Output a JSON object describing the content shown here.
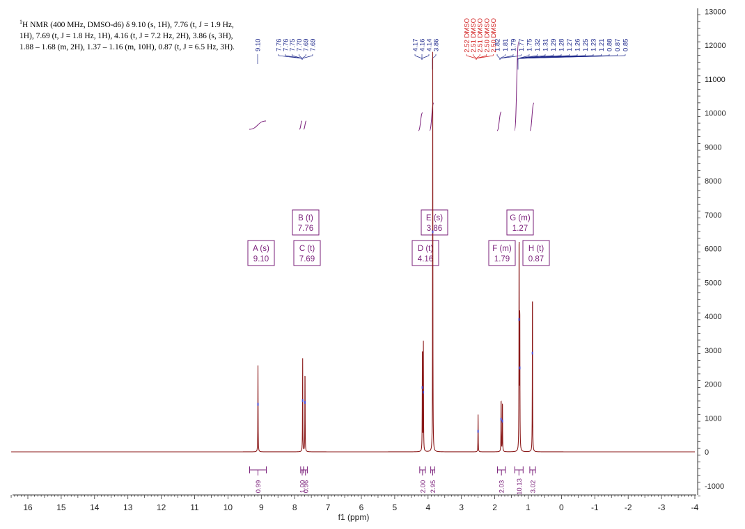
{
  "description": {
    "sup": "1",
    "lines": [
      "H NMR (400 MHz, DMSO-d6) δ 9.10 (s, 1H), 7.76 (t, J = 1.9 Hz,",
      "1H), 7.69 (t, J = 1.8 Hz, 1H), 4.16 (t, J = 7.2 Hz, 2H), 3.86 (s, 3H),",
      "1.88 – 1.68 (m, 2H), 1.37 – 1.16 (m, 10H), 0.87 (t, J = 6.5 Hz, 3H)."
    ]
  },
  "colors": {
    "spectrum": "#8b1a1a",
    "annotation": "#7a1f7a",
    "peak_label": "#1f2a8c",
    "solvent_label": "#d11a1a",
    "axis": "#333333"
  },
  "chart_data": {
    "type": "line",
    "xlabel": "f1 (ppm)",
    "xlim": [
      16.5,
      -4
    ],
    "ylim": [
      -1300,
      13000
    ],
    "x_ticks": [
      16,
      15,
      14,
      13,
      12,
      11,
      10,
      9,
      8,
      7,
      6,
      5,
      4,
      3,
      2,
      1,
      0,
      -1,
      -2,
      -3,
      -4
    ],
    "y_ticks": [
      -1000,
      0,
      1000,
      2000,
      3000,
      4000,
      5000,
      6000,
      7000,
      8000,
      9000,
      10000,
      11000,
      12000,
      13000
    ],
    "y_axis_side": "right",
    "peaks": [
      {
        "ppm": 9.1,
        "height": 2550
      },
      {
        "ppm": 7.76,
        "height": 2750
      },
      {
        "ppm": 7.69,
        "height": 2650
      },
      {
        "ppm": 4.17,
        "height": 3450
      },
      {
        "ppm": 4.14,
        "height": 3200
      },
      {
        "ppm": 3.86,
        "height": 11800
      },
      {
        "ppm": 2.5,
        "height": 1100
      },
      {
        "ppm": 1.81,
        "height": 1750
      },
      {
        "ppm": 1.77,
        "height": 1650
      },
      {
        "ppm": 1.27,
        "height": 7100
      },
      {
        "ppm": 1.25,
        "height": 4500
      },
      {
        "ppm": 0.87,
        "height": 5300
      }
    ],
    "peak_labels": [
      {
        "text": "9.10",
        "solvent": false
      },
      {
        "text": "7.76",
        "solvent": false
      },
      {
        "text": "7.76",
        "solvent": false
      },
      {
        "text": "7.75",
        "solvent": false
      },
      {
        "text": "7.70",
        "solvent": false
      },
      {
        "text": "7.69",
        "solvent": false
      },
      {
        "text": "7.69",
        "solvent": false
      },
      {
        "text": "4.17",
        "solvent": false
      },
      {
        "text": "4.16",
        "solvent": false
      },
      {
        "text": "4.14",
        "solvent": false
      },
      {
        "text": "3.86",
        "solvent": false
      },
      {
        "text": "2.52 DMSO",
        "solvent": true
      },
      {
        "text": "2.51 DMSO",
        "solvent": true
      },
      {
        "text": "2.51 DMSO",
        "solvent": true
      },
      {
        "text": "2.50 DMSO",
        "solvent": true
      },
      {
        "text": "2.50 DMSO",
        "solvent": true
      },
      {
        "text": "1.82",
        "solvent": false
      },
      {
        "text": "1.81",
        "solvent": false
      },
      {
        "text": "1.79",
        "solvent": false
      },
      {
        "text": "1.77",
        "solvent": false
      },
      {
        "text": "1.75",
        "solvent": false
      },
      {
        "text": "1.32",
        "solvent": false
      },
      {
        "text": "1.31",
        "solvent": false
      },
      {
        "text": "1.29",
        "solvent": false
      },
      {
        "text": "1.28",
        "solvent": false
      },
      {
        "text": "1.27",
        "solvent": false
      },
      {
        "text": "1.26",
        "solvent": false
      },
      {
        "text": "1.25",
        "solvent": false
      },
      {
        "text": "1.23",
        "solvent": false
      },
      {
        "text": "1.21",
        "solvent": false
      },
      {
        "text": "0.88",
        "solvent": false
      },
      {
        "text": "0.87",
        "solvent": false
      },
      {
        "text": "0.85",
        "solvent": false
      }
    ],
    "multiplets": [
      {
        "letter": "A",
        "type": "s",
        "shift": "9.10"
      },
      {
        "letter": "B",
        "type": "t",
        "shift": "7.76"
      },
      {
        "letter": "C",
        "type": "t",
        "shift": "7.69"
      },
      {
        "letter": "D",
        "type": "t",
        "shift": "4.16"
      },
      {
        "letter": "E",
        "type": "s",
        "shift": "3.86"
      },
      {
        "letter": "F",
        "type": "m",
        "shift": "1.79"
      },
      {
        "letter": "G",
        "type": "m",
        "shift": "1.27"
      },
      {
        "letter": "H",
        "type": "t",
        "shift": "0.87"
      }
    ],
    "integrals": [
      {
        "from": 9.35,
        "to": 8.85,
        "value": "0.99"
      },
      {
        "from": 7.82,
        "to": 7.73,
        "value": "1.00"
      },
      {
        "from": 7.73,
        "to": 7.62,
        "value": "0.96"
      },
      {
        "from": 4.25,
        "to": 4.08,
        "value": "2.00"
      },
      {
        "from": 3.92,
        "to": 3.8,
        "value": "2.95"
      },
      {
        "from": 1.92,
        "to": 1.68,
        "value": "2.03"
      },
      {
        "from": 1.4,
        "to": 1.15,
        "value": "10.13"
      },
      {
        "from": 0.95,
        "to": 0.78,
        "value": "3.02"
      }
    ]
  }
}
